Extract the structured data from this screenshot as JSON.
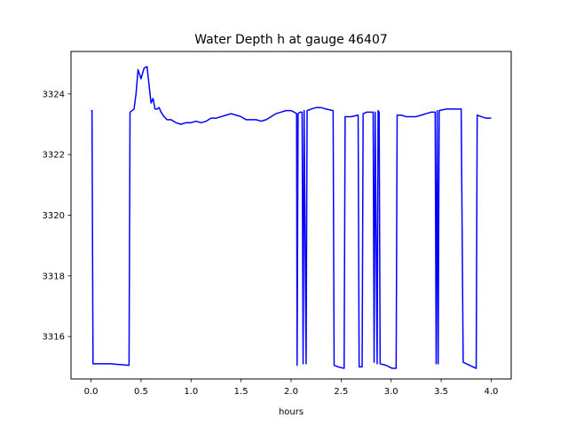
{
  "chart_data": {
    "type": "line",
    "title": "Water Depth h at gauge 46407",
    "xlabel": "hours",
    "ylabel": "",
    "xlim": [
      -0.2,
      4.2
    ],
    "ylim": [
      3314.6,
      3325.4
    ],
    "xticks": [
      0.0,
      0.5,
      1.0,
      1.5,
      2.0,
      2.5,
      3.0,
      3.5,
      4.0
    ],
    "xtick_labels": [
      "0.0",
      "0.5",
      "1.0",
      "1.5",
      "2.0",
      "2.5",
      "3.0",
      "3.5",
      "4.0"
    ],
    "yticks": [
      3316,
      3318,
      3320,
      3322,
      3324
    ],
    "ytick_labels": [
      "3316",
      "3318",
      "3320",
      "3322",
      "3324"
    ],
    "grid": false,
    "series": [
      {
        "color": "#0000ff",
        "x": [
          0.0,
          0.01,
          0.02,
          0.2,
          0.38,
          0.39,
          0.43,
          0.45,
          0.47,
          0.5,
          0.53,
          0.56,
          0.58,
          0.6,
          0.62,
          0.64,
          0.66,
          0.68,
          0.7,
          0.73,
          0.76,
          0.8,
          0.85,
          0.9,
          0.95,
          1.0,
          1.05,
          1.1,
          1.15,
          1.2,
          1.25,
          1.3,
          1.35,
          1.4,
          1.45,
          1.5,
          1.55,
          1.6,
          1.65,
          1.7,
          1.75,
          1.8,
          1.85,
          1.9,
          1.95,
          2.0,
          2.03,
          2.055,
          2.06,
          2.07,
          2.09,
          2.11,
          2.12,
          2.13,
          2.15,
          2.16,
          2.2,
          2.25,
          2.3,
          2.35,
          2.42,
          2.43,
          2.47,
          2.53,
          2.54,
          2.6,
          2.67,
          2.68,
          2.71,
          2.72,
          2.76,
          2.82,
          2.83,
          2.84,
          2.86,
          2.87,
          2.88,
          2.89,
          2.95,
          3.01,
          3.05,
          3.06,
          3.1,
          3.15,
          3.2,
          3.25,
          3.3,
          3.35,
          3.4,
          3.44,
          3.45,
          3.46,
          3.47,
          3.48,
          3.55,
          3.6,
          3.65,
          3.7,
          3.72,
          3.85,
          3.86,
          3.9,
          3.95,
          4.0
        ],
        "y": [
          3323.45,
          3323.45,
          3315.1,
          3315.1,
          3315.05,
          3323.4,
          3323.5,
          3324.0,
          3324.8,
          3324.5,
          3324.85,
          3324.9,
          3324.3,
          3323.7,
          3323.85,
          3323.5,
          3323.5,
          3323.55,
          3323.4,
          3323.25,
          3323.15,
          3323.15,
          3323.05,
          3323.0,
          3323.05,
          3323.05,
          3323.1,
          3323.05,
          3323.1,
          3323.2,
          3323.2,
          3323.25,
          3323.3,
          3323.35,
          3323.3,
          3323.25,
          3323.15,
          3323.15,
          3323.15,
          3323.1,
          3323.15,
          3323.25,
          3323.35,
          3323.4,
          3323.45,
          3323.45,
          3323.4,
          3323.35,
          3315.05,
          3323.35,
          3323.4,
          3323.4,
          3315.1,
          3323.45,
          3315.1,
          3323.45,
          3323.5,
          3323.55,
          3323.55,
          3323.5,
          3323.45,
          3315.05,
          3315.0,
          3314.95,
          3323.25,
          3323.25,
          3323.3,
          3315.0,
          3315.0,
          3323.35,
          3323.4,
          3323.4,
          3315.15,
          3323.4,
          3315.1,
          3323.45,
          3323.4,
          3315.1,
          3315.05,
          3314.95,
          3314.95,
          3323.3,
          3323.3,
          3323.25,
          3323.25,
          3323.25,
          3323.3,
          3323.35,
          3323.4,
          3323.4,
          3315.1,
          3323.45,
          3315.1,
          3323.45,
          3323.5,
          3323.5,
          3323.5,
          3323.5,
          3315.15,
          3314.95,
          3323.3,
          3323.25,
          3323.2,
          3323.2
        ]
      }
    ]
  }
}
